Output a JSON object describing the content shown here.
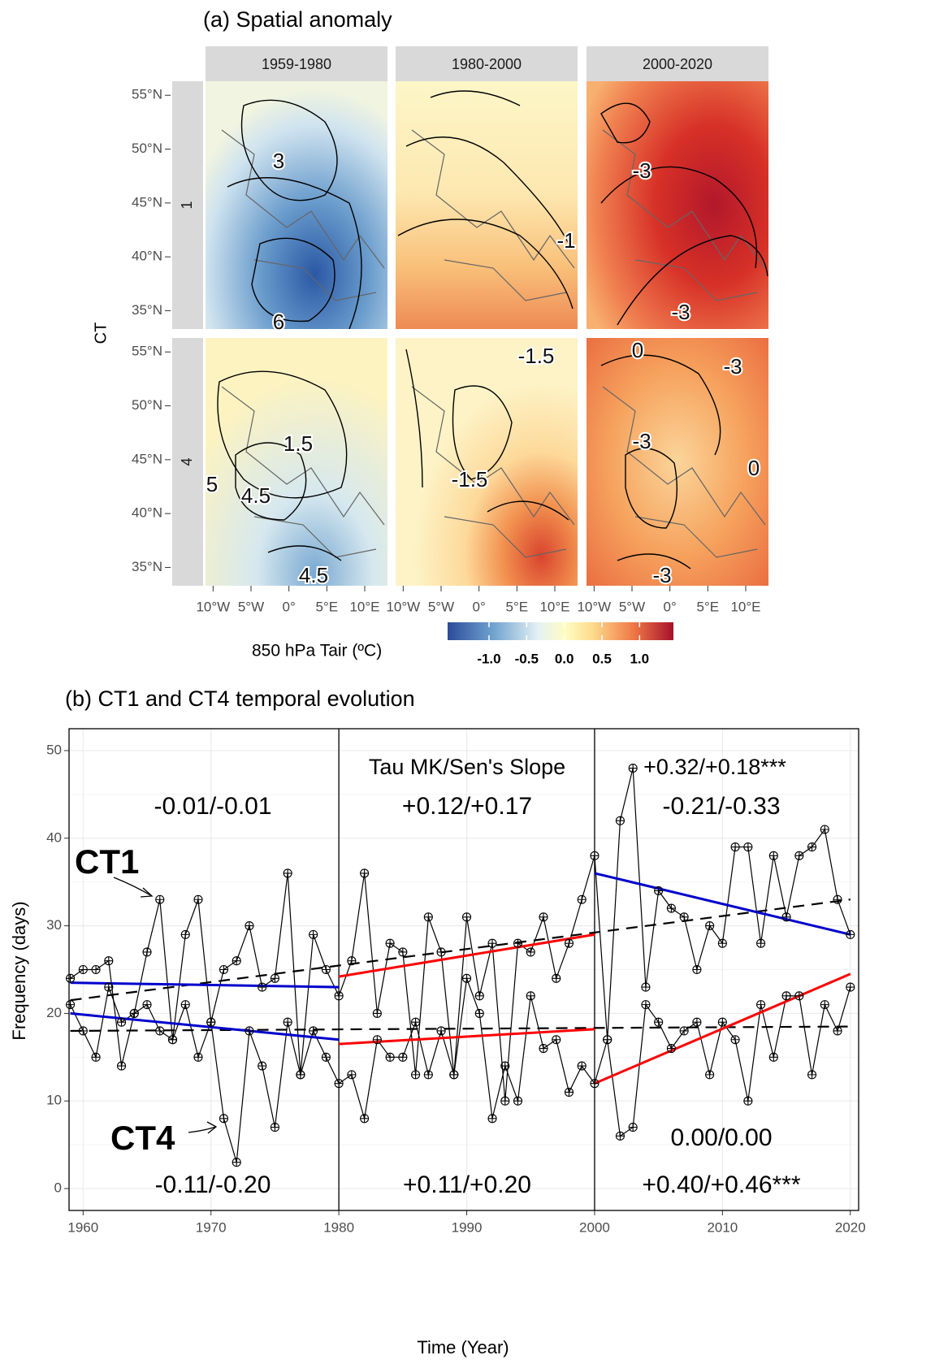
{
  "chart_data": [
    {
      "type": "map",
      "title": "(a) Spatial anomaly",
      "columns": [
        "1959-1980",
        "1980-2000",
        "2000-2020"
      ],
      "rows": [
        "1",
        "4"
      ],
      "y_label": "CT",
      "xlim": [
        -11,
        13
      ],
      "ylim": [
        33.3,
        56.3
      ],
      "xticks": [
        {
          "value": -10,
          "label": "10°W"
        },
        {
          "value": -5,
          "label": "5°W"
        },
        {
          "value": 0,
          "label": "0°"
        },
        {
          "value": 5,
          "label": "5°E"
        },
        {
          "value": 10,
          "label": "10°E"
        }
      ],
      "yticks": [
        {
          "value": 35,
          "label": "35°N"
        },
        {
          "value": 40,
          "label": "40°N"
        },
        {
          "value": 45,
          "label": "45°N"
        },
        {
          "value": 50,
          "label": "50°N"
        },
        {
          "value": 55,
          "label": "55°N"
        }
      ],
      "contour_labels": [
        [
          "3",
          "6"
        ],
        [
          "-1"
        ],
        [
          "-3",
          "-3"
        ],
        [
          "1.5",
          "5",
          "4.5",
          "4.5"
        ],
        [
          "-1.5",
          "-1.5"
        ],
        [
          "0",
          "-3",
          "-3",
          "0",
          "-3"
        ]
      ],
      "colorbar": {
        "label": "850 hPa Tair (ºC)",
        "lim": [
          -1.55,
          1.45
        ],
        "ticks": [
          {
            "value": -1,
            "label": "-1.0"
          },
          -0.5,
          {
            "value": 0,
            "label": "0.0"
          },
          0.5,
          {
            "value": 1,
            "label": "1.0"
          }
        ]
      }
    },
    {
      "type": "line",
      "title": "(b) CT1 and CT4 temporal evolution",
      "x_label": "Time (Year)",
      "y_label": "Frequency (days)",
      "x": [
        1959,
        1960,
        1961,
        1962,
        1963,
        1964,
        1965,
        1966,
        1967,
        1968,
        1969,
        1970,
        1971,
        1972,
        1973,
        1974,
        1975,
        1976,
        1977,
        1978,
        1979,
        1980,
        1981,
        1982,
        1983,
        1984,
        1985,
        1986,
        1987,
        1988,
        1989,
        1990,
        1991,
        1992,
        1993,
        1994,
        1995,
        1996,
        1997,
        1998,
        1999,
        2000,
        2001,
        2002,
        2003,
        2004,
        2005,
        2006,
        2007,
        2008,
        2009,
        2010,
        2011,
        2012,
        2013,
        2014,
        2015,
        2016,
        2017,
        2018,
        2019,
        2020
      ],
      "series": [
        {
          "name": "CT1",
          "color": "#000000",
          "values": [
            24,
            25,
            25,
            26,
            14,
            20,
            27,
            33,
            17,
            29,
            33,
            19,
            25,
            26,
            30,
            23,
            24,
            36,
            13,
            29,
            25,
            22,
            26,
            36,
            20,
            28,
            27,
            13,
            31,
            27,
            13,
            31,
            22,
            28,
            10,
            28,
            27,
            31,
            24,
            28,
            33,
            38,
            17,
            42,
            48,
            23,
            34,
            32,
            31,
            25,
            30,
            28,
            39,
            39,
            28,
            38,
            31,
            38,
            39,
            41,
            33,
            29
          ]
        },
        {
          "name": "CT4",
          "color": "#000000",
          "values": [
            21,
            18,
            15,
            23,
            19,
            20,
            21,
            18,
            17,
            21,
            15,
            19,
            8,
            3,
            18,
            14,
            7,
            19,
            13,
            18,
            15,
            12,
            13,
            8,
            17,
            15,
            15,
            19,
            13,
            18,
            13,
            24,
            20,
            8,
            14,
            10,
            22,
            16,
            17,
            11,
            14,
            12,
            17,
            6,
            7,
            21,
            19,
            16,
            18,
            19,
            13,
            19,
            17,
            10,
            21,
            15,
            22,
            22,
            13,
            21,
            18,
            23
          ]
        }
      ],
      "trends": [
        {
          "color": "#0000cc",
          "x": [
            1959,
            1980
          ],
          "values": [
            23.5,
            23
          ]
        },
        {
          "color": "#ff0000",
          "x": [
            1980,
            2000
          ],
          "values": [
            24.2,
            29
          ]
        },
        {
          "color": "#0000cc",
          "x": [
            2000,
            2020
          ],
          "values": [
            36,
            29
          ]
        },
        {
          "color": "#0000cc",
          "x": [
            1959,
            1980
          ],
          "values": [
            20,
            17
          ]
        },
        {
          "color": "#ff0000",
          "x": [
            1980,
            2000
          ],
          "values": [
            16.5,
            18.2
          ]
        },
        {
          "color": "#ff0000",
          "x": [
            2000,
            2020
          ],
          "values": [
            12,
            24.5
          ]
        }
      ],
      "dashed": [
        {
          "color": "#000000",
          "x": [
            1959,
            2020
          ],
          "values": [
            21.5,
            33
          ]
        },
        {
          "color": "#000000",
          "x": [
            1959,
            2020
          ],
          "values": [
            18,
            18.5
          ]
        }
      ],
      "dividers": [
        1980,
        2000
      ],
      "annotations": [
        {
          "text": "Tau MK/Sen's Slope",
          "color": "#000000"
        },
        {
          "text": "+0.32/+0.18***",
          "color": "#000000"
        },
        {
          "text": "-0.01/-0.01",
          "color": "#0000cc"
        },
        {
          "text": "+0.12/+0.17",
          "color": "#ff0000"
        },
        {
          "text": "-0.21/-0.33",
          "color": "#0000cc"
        },
        {
          "text": "0.00/0.00",
          "color": "#000000"
        },
        {
          "text": "-0.11/-0.20",
          "color": "#0000cc"
        },
        {
          "text": "+0.11/+0.20",
          "color": "#ff0000"
        },
        {
          "text": "+0.40/+0.46***",
          "color": "#ff0000"
        }
      ],
      "xlim": [
        1958.9,
        2020.65
      ],
      "ylim": [
        -2.5,
        52.5
      ],
      "xticks": [
        1960,
        1970,
        1980,
        1990,
        2000,
        2010,
        2020
      ],
      "yticks": [
        0,
        10,
        20,
        30,
        40,
        50
      ],
      "grid": true
    }
  ]
}
